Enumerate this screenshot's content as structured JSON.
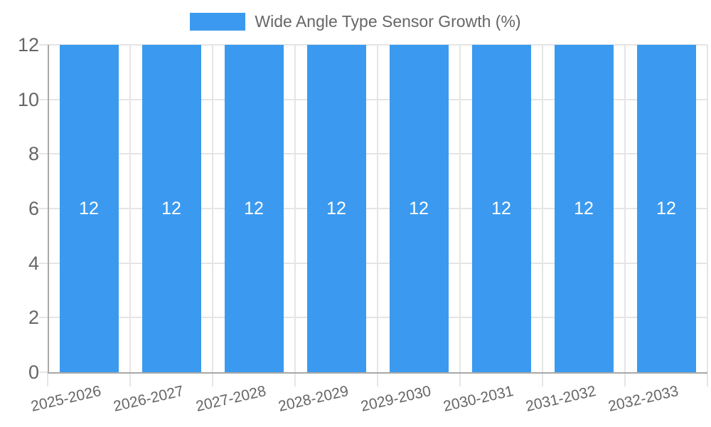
{
  "chart_data": {
    "type": "bar",
    "title": "",
    "legend": {
      "position": "top",
      "label": "Wide Angle Type Sensor Growth (%)"
    },
    "categories": [
      "2025-2026",
      "2026-2027",
      "2027-2028",
      "2028-2029",
      "2029-2030",
      "2030-2031",
      "2031-2032",
      "2032-2033"
    ],
    "series": [
      {
        "name": "Wide Angle Type Sensor Growth (%)",
        "values": [
          12,
          12,
          12,
          12,
          12,
          12,
          12,
          12
        ]
      }
    ],
    "bar_value_labels": [
      "12",
      "12",
      "12",
      "12",
      "12",
      "12",
      "12",
      "12"
    ],
    "xlabel": "",
    "ylabel": "",
    "ylim": [
      0,
      12
    ],
    "yticks": [
      0,
      2,
      4,
      6,
      8,
      10,
      12
    ],
    "grid": true,
    "x_label_rotation_deg": -13,
    "colors": {
      "bar": "#3B9AEF",
      "bar_value_text": "#FFFFFF",
      "tick_text": "#666666",
      "legend_text": "#666666",
      "gridline": "#E5E5E5",
      "axis_line": "#A8A8A8",
      "background": "#FFFFFF"
    }
  }
}
